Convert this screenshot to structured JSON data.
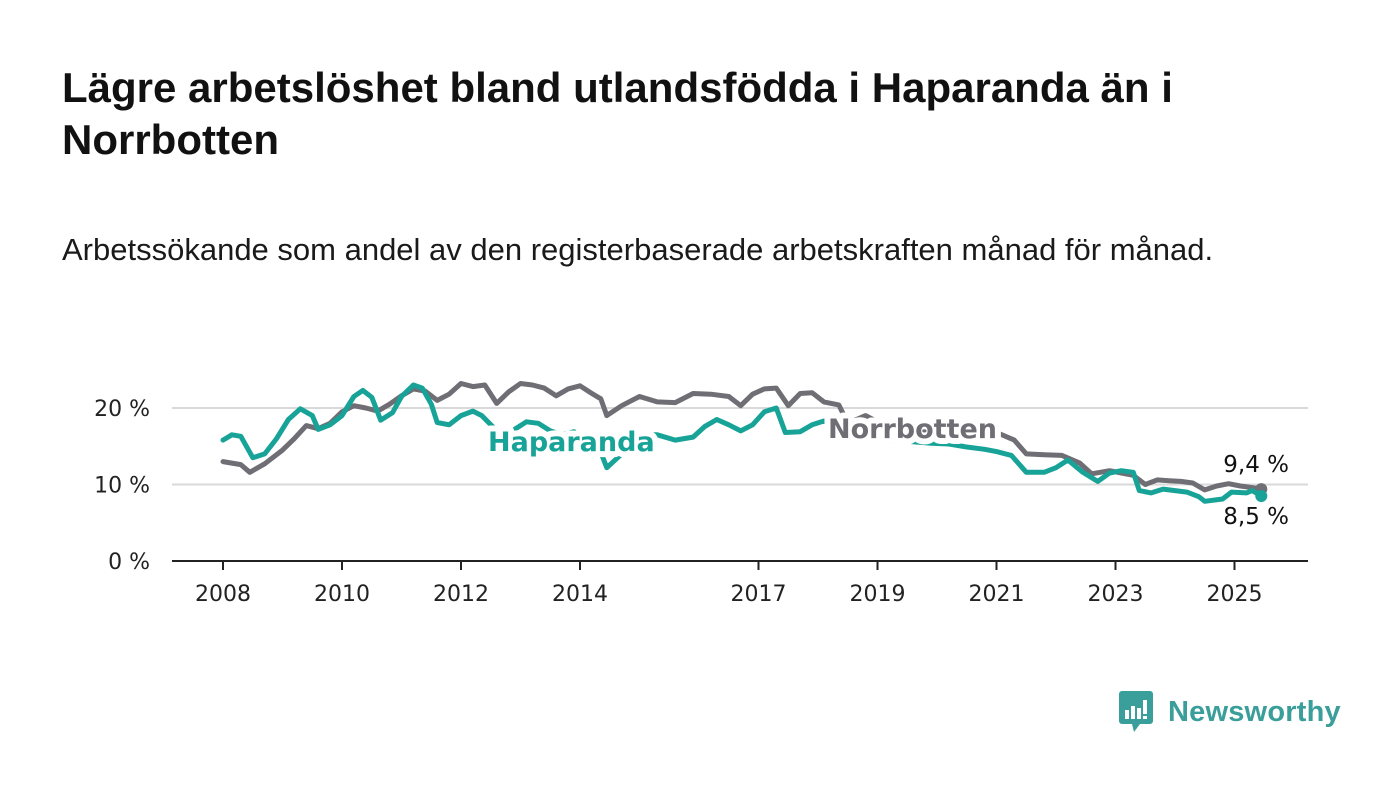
{
  "title": "Lägre arbetslöshet bland utlandsfödda i Haparanda än i Norrbotten",
  "subtitle": "Arbetssökande som andel av den registerbaserade arbetskraften månad för månad.",
  "brand": {
    "name": "Newsworthy",
    "color": "#3a9e9a",
    "icon": "newsworthy-logo-icon"
  },
  "chart_data": {
    "type": "line",
    "ylim": [
      0,
      24
    ],
    "xlim": [
      2007.8,
      2026.3
    ],
    "yticks": [
      0,
      10,
      20
    ],
    "ytick_labels": [
      "0 %",
      "10 %",
      "20 %"
    ],
    "xticks": [
      2008,
      2010,
      2012,
      2014,
      2017,
      2019,
      2021,
      2023,
      2025
    ],
    "xtick_labels": [
      "2008",
      "2010",
      "2012",
      "2014",
      "2017",
      "2019",
      "2021",
      "2023",
      "2025"
    ],
    "grid": "horizontal",
    "series": [
      {
        "name": "Norrbotten",
        "color": "#6e6e74",
        "end_label": "9,4 %",
        "points": [
          [
            2008.0,
            13.0
          ],
          [
            2008.3,
            12.6
          ],
          [
            2008.45,
            11.6
          ],
          [
            2008.7,
            12.7
          ],
          [
            2009.0,
            14.5
          ],
          [
            2009.2,
            16.0
          ],
          [
            2009.4,
            17.7
          ],
          [
            2009.6,
            17.3
          ],
          [
            2009.8,
            18.0
          ],
          [
            2010.0,
            19.5
          ],
          [
            2010.2,
            20.3
          ],
          [
            2010.4,
            20.0
          ],
          [
            2010.6,
            19.6
          ],
          [
            2010.8,
            20.5
          ],
          [
            2011.0,
            21.6
          ],
          [
            2011.2,
            22.5
          ],
          [
            2011.4,
            22.2
          ],
          [
            2011.6,
            21.0
          ],
          [
            2011.8,
            21.8
          ],
          [
            2012.0,
            23.2
          ],
          [
            2012.2,
            22.8
          ],
          [
            2012.4,
            23.0
          ],
          [
            2012.6,
            20.6
          ],
          [
            2012.8,
            22.1
          ],
          [
            2013.0,
            23.2
          ],
          [
            2013.2,
            23.0
          ],
          [
            2013.4,
            22.6
          ],
          [
            2013.6,
            21.6
          ],
          [
            2013.8,
            22.5
          ],
          [
            2014.0,
            22.9
          ],
          [
            2014.2,
            21.9
          ],
          [
            2014.35,
            21.2
          ],
          [
            2014.45,
            19.0
          ],
          [
            2014.7,
            20.3
          ],
          [
            2015.0,
            21.5
          ],
          [
            2015.3,
            20.8
          ],
          [
            2015.6,
            20.7
          ],
          [
            2015.9,
            21.9
          ],
          [
            2016.2,
            21.8
          ],
          [
            2016.5,
            21.5
          ],
          [
            2016.7,
            20.3
          ],
          [
            2016.9,
            21.8
          ],
          [
            2017.1,
            22.5
          ],
          [
            2017.3,
            22.6
          ],
          [
            2017.5,
            20.3
          ],
          [
            2017.7,
            21.9
          ],
          [
            2017.9,
            22.0
          ],
          [
            2018.1,
            20.8
          ],
          [
            2018.35,
            20.4
          ],
          [
            2018.5,
            18.0
          ],
          [
            2018.8,
            19.0
          ],
          [
            2019.0,
            18.2
          ],
          [
            2019.3,
            17.8
          ],
          [
            2019.6,
            17.3
          ],
          [
            2019.9,
            17.0
          ],
          [
            2020.2,
            17.3
          ],
          [
            2020.5,
            16.8
          ],
          [
            2020.8,
            16.5
          ],
          [
            2021.0,
            16.8
          ],
          [
            2021.3,
            15.8
          ],
          [
            2021.5,
            14.0
          ],
          [
            2021.8,
            13.9
          ],
          [
            2022.1,
            13.8
          ],
          [
            2022.4,
            12.8
          ],
          [
            2022.6,
            11.4
          ],
          [
            2022.9,
            11.8
          ],
          [
            2023.1,
            11.5
          ],
          [
            2023.3,
            11.2
          ],
          [
            2023.5,
            10.0
          ],
          [
            2023.7,
            10.6
          ],
          [
            2023.9,
            10.5
          ],
          [
            2024.1,
            10.4
          ],
          [
            2024.3,
            10.2
          ],
          [
            2024.5,
            9.3
          ],
          [
            2024.7,
            9.8
          ],
          [
            2024.9,
            10.1
          ],
          [
            2025.1,
            9.8
          ],
          [
            2025.3,
            9.6
          ],
          [
            2025.45,
            9.4
          ]
        ]
      },
      {
        "name": "Haparanda",
        "color": "#17a397",
        "end_label": "8,5 %",
        "points": [
          [
            2008.0,
            15.8
          ],
          [
            2008.15,
            16.5
          ],
          [
            2008.3,
            16.3
          ],
          [
            2008.5,
            13.5
          ],
          [
            2008.7,
            14.0
          ],
          [
            2008.9,
            16.0
          ],
          [
            2009.1,
            18.5
          ],
          [
            2009.3,
            19.9
          ],
          [
            2009.5,
            19.0
          ],
          [
            2009.6,
            17.2
          ],
          [
            2009.8,
            17.8
          ],
          [
            2010.0,
            19.0
          ],
          [
            2010.2,
            21.5
          ],
          [
            2010.35,
            22.3
          ],
          [
            2010.5,
            21.4
          ],
          [
            2010.65,
            18.4
          ],
          [
            2010.85,
            19.4
          ],
          [
            2011.0,
            21.5
          ],
          [
            2011.2,
            23.0
          ],
          [
            2011.35,
            22.6
          ],
          [
            2011.5,
            20.5
          ],
          [
            2011.6,
            18.1
          ],
          [
            2011.8,
            17.8
          ],
          [
            2012.0,
            19.0
          ],
          [
            2012.2,
            19.6
          ],
          [
            2012.35,
            19.0
          ],
          [
            2012.5,
            17.8
          ],
          [
            2012.7,
            16.3
          ],
          [
            2012.9,
            17.2
          ],
          [
            2013.1,
            18.2
          ],
          [
            2013.3,
            18.0
          ],
          [
            2013.5,
            17.0
          ],
          [
            2013.7,
            16.5
          ],
          [
            2013.9,
            16.9
          ],
          [
            2014.1,
            15.5
          ],
          [
            2014.3,
            15.2
          ],
          [
            2014.45,
            12.2
          ],
          [
            2014.7,
            14.0
          ],
          [
            2015.0,
            16.5
          ],
          [
            2015.3,
            16.5
          ],
          [
            2015.6,
            15.8
          ],
          [
            2015.9,
            16.2
          ],
          [
            2016.1,
            17.6
          ],
          [
            2016.3,
            18.5
          ],
          [
            2016.5,
            17.8
          ],
          [
            2016.7,
            17.0
          ],
          [
            2016.9,
            17.8
          ],
          [
            2017.1,
            19.5
          ],
          [
            2017.3,
            20.0
          ],
          [
            2017.45,
            16.8
          ],
          [
            2017.7,
            16.9
          ],
          [
            2017.9,
            17.8
          ],
          [
            2018.1,
            18.3
          ],
          [
            2018.3,
            17.9
          ],
          [
            2018.5,
            16.8
          ],
          [
            2018.7,
            15.7
          ],
          [
            2019.0,
            16.0
          ],
          [
            2019.3,
            15.8
          ],
          [
            2019.6,
            15.6
          ],
          [
            2019.9,
            15.4
          ],
          [
            2020.2,
            15.3
          ],
          [
            2020.5,
            14.9
          ],
          [
            2020.8,
            14.6
          ],
          [
            2021.0,
            14.3
          ],
          [
            2021.25,
            13.8
          ],
          [
            2021.5,
            11.6
          ],
          [
            2021.8,
            11.6
          ],
          [
            2022.0,
            12.2
          ],
          [
            2022.2,
            13.2
          ],
          [
            2022.45,
            11.6
          ],
          [
            2022.7,
            10.4
          ],
          [
            2022.9,
            11.5
          ],
          [
            2023.1,
            11.8
          ],
          [
            2023.3,
            11.6
          ],
          [
            2023.4,
            9.2
          ],
          [
            2023.6,
            8.9
          ],
          [
            2023.8,
            9.4
          ],
          [
            2024.0,
            9.2
          ],
          [
            2024.2,
            9.0
          ],
          [
            2024.4,
            8.4
          ],
          [
            2024.5,
            7.8
          ],
          [
            2024.8,
            8.1
          ],
          [
            2024.95,
            9.0
          ],
          [
            2025.2,
            8.9
          ],
          [
            2025.3,
            9.2
          ],
          [
            2025.45,
            8.5
          ]
        ]
      }
    ]
  }
}
